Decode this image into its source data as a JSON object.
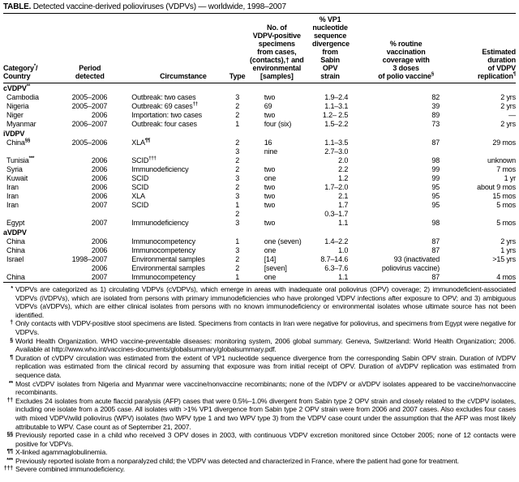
{
  "title": {
    "prefix": "TABLE.",
    "text": "Detected vaccine-derived polioviruses (VDPVs) — worldwide, 1998–2007"
  },
  "headers": [
    {
      "lines": [
        "Category",
        "Country"
      ],
      "sup": "*",
      "label": "Category*/\nCountry"
    },
    {
      "label": "Period\ndetected"
    },
    {
      "label": "Circumstance"
    },
    {
      "label": "Type"
    },
    {
      "label": "No. of\nVDPV-positive\nspecimens\nfrom cases,\n(contacts),† and\nenvironmental\n[samples]"
    },
    {
      "label": "% VP1\nnucleotide\nsequence\ndivergence\nfrom Sabin\nOPV strain"
    },
    {
      "label": "% routine\nvaccination\ncoverage with\n3 doses\nof polio vaccine§"
    },
    {
      "label": "Estimated\nduration\nof VDPV\nreplication¶"
    }
  ],
  "groups": [
    {
      "category": "cVDPV",
      "sup": "**",
      "rows": [
        {
          "country": "Cambodia",
          "period": "2005–2006",
          "circumstance": "Outbreak: two cases",
          "type": "3",
          "specimens": "two",
          "vp1": "1.9–2.4",
          "coverage": "82",
          "duration": "2 yrs"
        },
        {
          "country": "Nigeria",
          "period": "2005–2007",
          "circumstance": "Outbreak: 69 cases",
          "circ_sup": "††",
          "type": "2",
          "specimens": "69",
          "vp1": "1.1–3.1",
          "coverage": "39",
          "duration": "2 yrs"
        },
        {
          "country": "Niger",
          "period": "2006",
          "circumstance": "Importation: two cases",
          "type": "2",
          "specimens": "two",
          "vp1": "1.2– 2.5",
          "coverage": "89",
          "duration": "—"
        },
        {
          "country": "Myanmar",
          "period": "2006–2007",
          "circumstance": "Outbreak: four cases",
          "type": "1",
          "specimens": "four (six)",
          "vp1": "1.5–2.2",
          "coverage": "73",
          "duration": "2 yrs"
        }
      ]
    },
    {
      "category": "iVDPV",
      "rows": [
        {
          "country": "China",
          "country_sup": "§§",
          "period": "2005–2006",
          "circumstance": "XLA",
          "circ_sup": "¶¶",
          "type": "2",
          "specimens": "16",
          "vp1": "1.1–3.5",
          "coverage": "87",
          "duration": "29 mos"
        },
        {
          "country": "",
          "period": "",
          "circumstance": "",
          "type": "3",
          "specimens": "nine",
          "vp1": "2.7–3.0",
          "coverage": "",
          "duration": ""
        },
        {
          "country": "Tunisia",
          "country_sup": "***",
          "period": "2006",
          "circumstance": "SCID",
          "circ_sup": "†††",
          "type": "2",
          "specimens": "",
          "vp1": "2.0",
          "coverage": "98",
          "duration": "unknown"
        },
        {
          "country": "Syria",
          "period": "2006",
          "circumstance": "Immunodeficiency",
          "type": "2",
          "specimens": "two",
          "vp1": "2.2",
          "coverage": "99",
          "duration": "7 mos"
        },
        {
          "country": "Kuwait",
          "period": "2006",
          "circumstance": "SCID",
          "type": "3",
          "specimens": "one",
          "vp1": "1.2",
          "coverage": "99",
          "duration": "1 yr"
        },
        {
          "country": "Iran",
          "period": "2006",
          "circumstance": "SCID",
          "type": "2",
          "specimens": "two",
          "vp1": "1.7–2.0",
          "coverage": "95",
          "duration": "about 9 mos"
        },
        {
          "country": "Iran",
          "period": "2006",
          "circumstance": "XLA",
          "type": "3",
          "specimens": "two",
          "vp1": "2.1",
          "coverage": "95",
          "duration": "15 mos"
        },
        {
          "country": "Iran",
          "period": "2007",
          "circumstance": "SCID",
          "type": "1",
          "specimens": "two",
          "vp1": "1.7",
          "coverage": "95",
          "duration": "5 mos"
        },
        {
          "country": "",
          "period": "",
          "circumstance": "",
          "type": "2",
          "specimens": "",
          "vp1": "0.3–1.7",
          "coverage": "",
          "duration": ""
        },
        {
          "country": "Egypt",
          "period": "2007",
          "circumstance": "Immunodeficiency",
          "type": "3",
          "specimens": "two",
          "vp1": "1.1",
          "coverage": "98",
          "duration": "5 mos"
        }
      ]
    },
    {
      "category": "aVDPV",
      "rows": [
        {
          "country": "China",
          "period": "2006",
          "circumstance": "Immunocompetency",
          "type": "1",
          "specimens": "one (seven)",
          "vp1": "1.4–2.2",
          "coverage": "87",
          "duration": "2 yrs"
        },
        {
          "country": "China",
          "period": "2006",
          "circumstance": "Immunocompetency",
          "type": "3",
          "specimens": "one",
          "vp1": "1.0",
          "coverage": "87",
          "duration": "1 yrs"
        },
        {
          "country": "Israel",
          "period": "1998–2007",
          "circumstance": "Environmental samples",
          "type": "2",
          "specimens": "[14]",
          "vp1": "8.7–14.6",
          "coverage": "93 (inactivated",
          "duration": ">15 yrs"
        },
        {
          "country": "",
          "period": "2006",
          "circumstance": "Environmental samples",
          "type": "2",
          "specimens": "[seven]",
          "vp1": "6.3–7.6",
          "coverage": "poliovirus vaccine)",
          "duration": ""
        },
        {
          "country": "China",
          "period": "2007",
          "circumstance": "Immunocompetency",
          "type": "1",
          "specimens": "one",
          "vp1": "1.1",
          "coverage": "87",
          "duration": "4 mos"
        }
      ]
    }
  ],
  "footnotes": [
    {
      "mark": "*",
      "text": "VDPVs are categorized as 1) circulating VDPVs (cVDPVs), which emerge in areas with inadequate oral poliovirus (OPV) coverage; 2) immunodeficient-associated VDPVs (iVDPVs), which are isolated from persons with primary immunodeficiencies who have prolonged VDPV infections after exposure to OPV; and 3) ambiguous VDPVs (aVDPVs), which are either clinical isolates from persons with no known immunodeficiency or environmental isolates whose ultimate source has not been identified."
    },
    {
      "mark": "†",
      "text": "Only contacts with VDPV-positive stool specimens are listed. Specimens from contacts in Iran were negative for poliovirus, and specimens from Egypt were negative for VDPVs."
    },
    {
      "mark": "§",
      "text": "World Health Organization. WHO vaccine-preventable diseases: monitoring system, 2006 global summary. Geneva, Switzerland: World Health Organization; 2006. Available at http://www.who.int/vaccines-documents/globalsummary/globalsummary.pdf."
    },
    {
      "mark": "¶",
      "text": "Duration of cVDPV circulation was estimated from the extent of VP1 nucleotide sequence divergence from the corresponding Sabin OPV strain. Duration of iVDPV replication was estimated from the clinical record by assuming that exposure was from initial receipt of OPV. Duration of aVDPV replication was estimated from sequence data."
    },
    {
      "mark": "**",
      "text": "Most cVDPV isolates from Nigeria and Myanmar were vaccine/nonvaccine recombinants; none of the iVDPV or aVDPV isolates appeared to be vaccine/nonvaccine recombinants."
    },
    {
      "mark": "††",
      "text": "Excludes 24 isolates from acute flaccid paralysis (AFP) cases that were 0.5%–1.0% divergent from Sabin type 2 OPV strain and closely related to the cVDPV isolates, including one isolate from a 2005 case. All isolates with >1% VP1 divergence from Sabin type 2 OPV strain were from 2006 and 2007 cases. Also excludes four cases with mixed VDPV/wild poliovirus (WPV) isolates (two WPV type 1 and two WPV type 3) from the VDPV case count under the assumption that the AFP was most likely attributable to WPV. Case count as of September 21, 2007."
    },
    {
      "mark": "§§",
      "text": "Previously reported case in a child who received 3 OPV doses in 2003, with continuous VDPV excretion monitored since October 2005; none of 12 contacts were positive for VDPVs."
    },
    {
      "mark": "¶¶",
      "text": "X-linked agammaglobulinemia."
    },
    {
      "mark": "***",
      "text": "Previously reported isolate from a nonparalyzed child; the VDPV was detected and characterized in France, where the patient had gone for treatment."
    },
    {
      "mark": "†††",
      "text": "Severe combined immunodeficiency."
    }
  ]
}
